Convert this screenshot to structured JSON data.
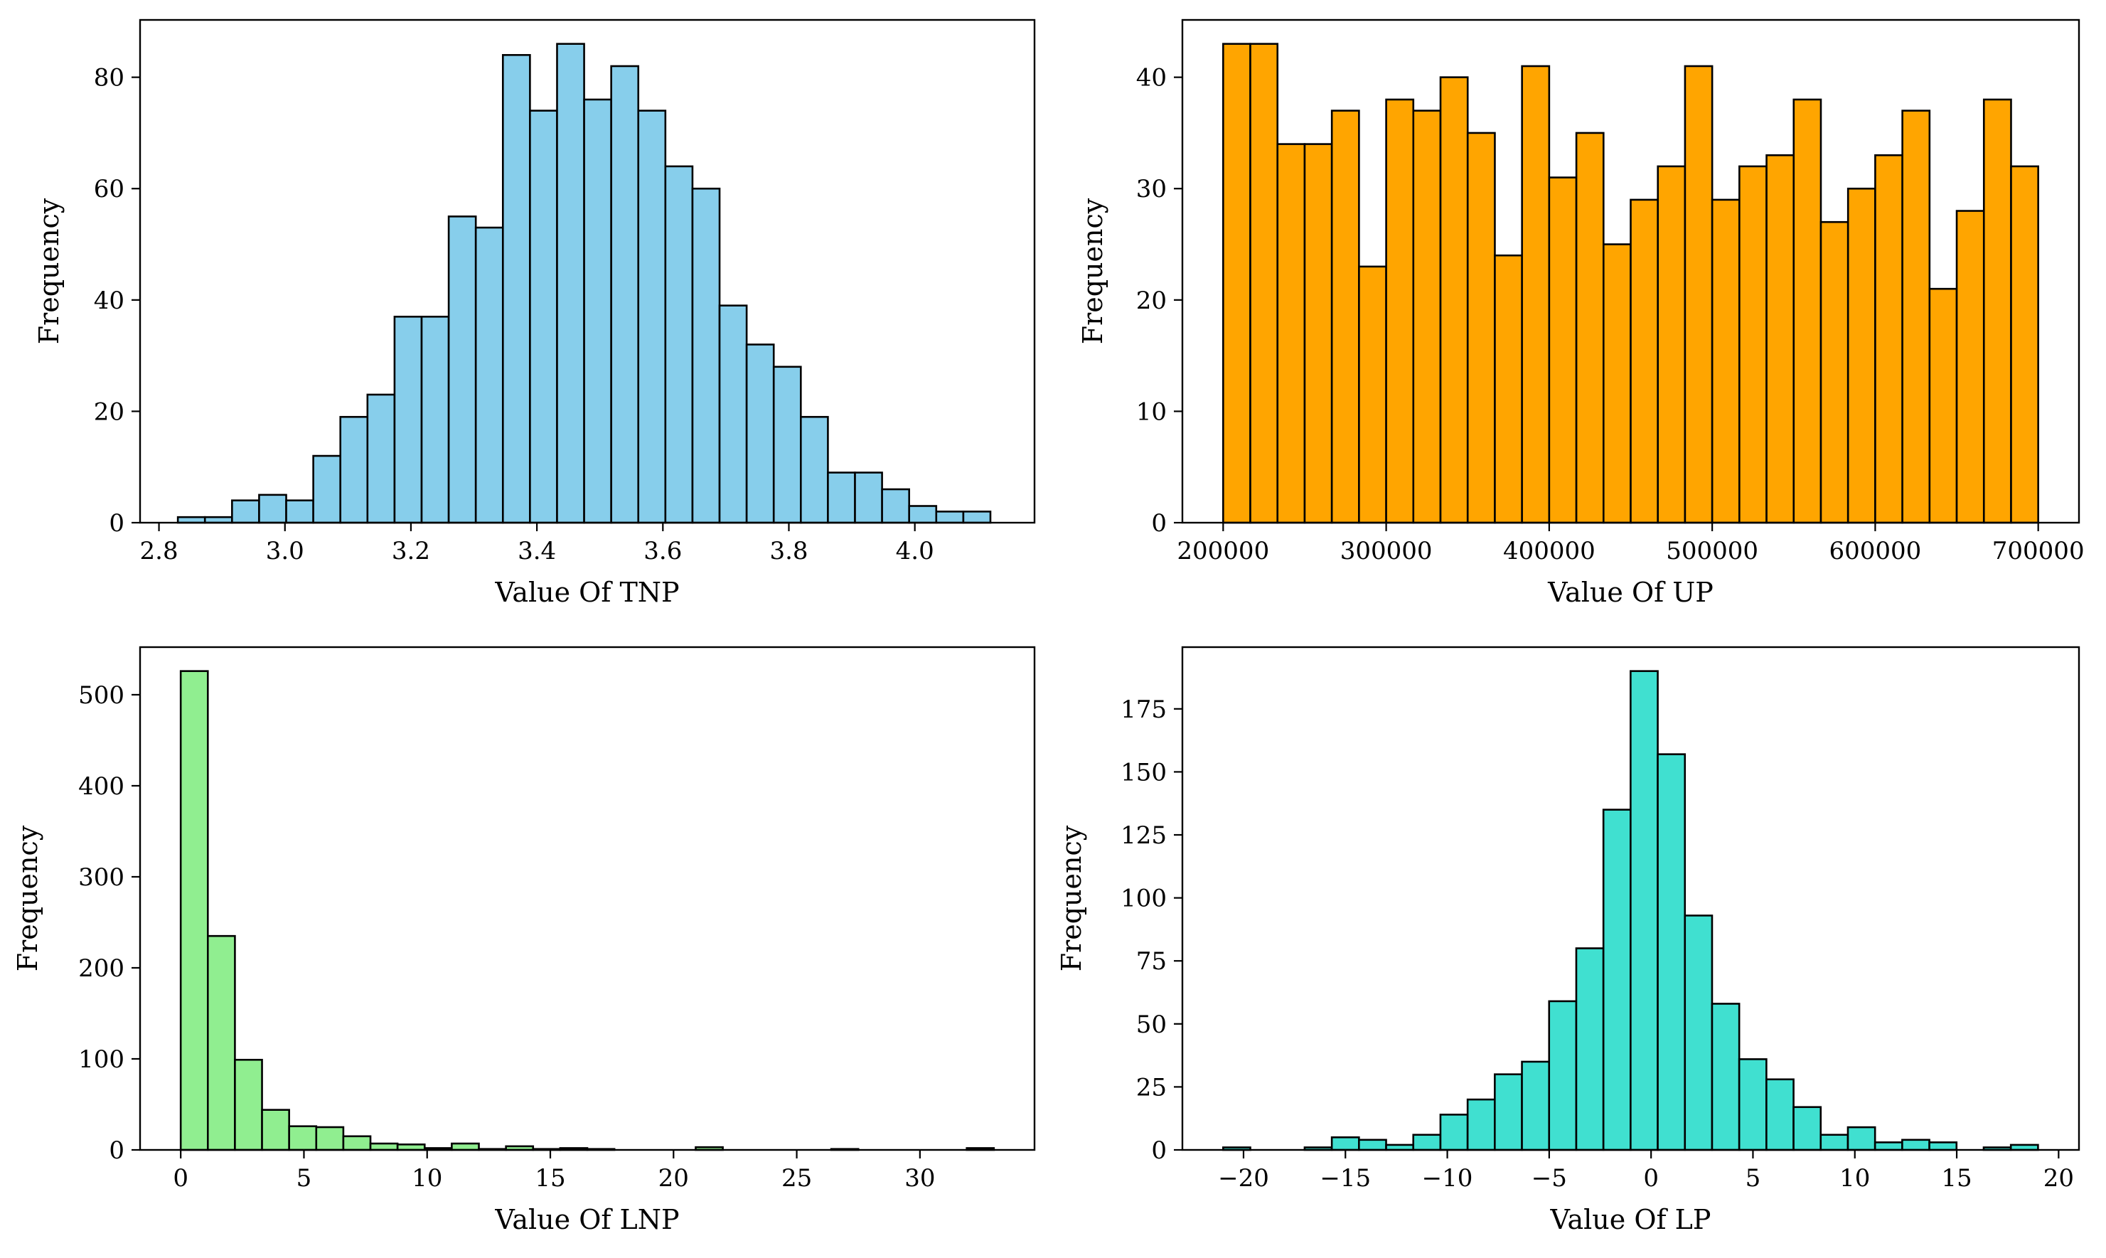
{
  "chart_data": [
    {
      "type": "bar",
      "subtype": "histogram",
      "xlabel": "Value Of TNP",
      "ylabel": "Frequency",
      "color": "#87CEEB",
      "edge_color": "#000000",
      "bin_start": 2.83,
      "bin_width": 0.043,
      "values": [
        1,
        1,
        4,
        5,
        4,
        12,
        19,
        23,
        37,
        37,
        55,
        53,
        84,
        74,
        86,
        76,
        82,
        74,
        64,
        60,
        39,
        32,
        28,
        19,
        9,
        9,
        6,
        3,
        2,
        2
      ],
      "xlim": [
        2.77,
        4.19
      ],
      "ylim": [
        0,
        90.3
      ],
      "xticks": [
        2.8,
        3.0,
        3.2,
        3.4,
        3.6,
        3.8,
        4.0
      ],
      "xtick_labels": [
        "2.8",
        "3.0",
        "3.2",
        "3.4",
        "3.6",
        "3.8",
        "4.0"
      ],
      "yticks": [
        0,
        20,
        40,
        60,
        80
      ],
      "ytick_labels": [
        "0",
        "20",
        "40",
        "60",
        "80"
      ]
    },
    {
      "type": "bar",
      "subtype": "histogram",
      "xlabel": "Value Of UP",
      "ylabel": "Frequency",
      "color": "#FFA500",
      "edge_color": "#000000",
      "bin_start": 200000,
      "bin_width": 16666.67,
      "values": [
        43,
        43,
        34,
        34,
        37,
        23,
        38,
        37,
        40,
        35,
        24,
        41,
        31,
        35,
        25,
        29,
        32,
        41,
        29,
        32,
        33,
        38,
        27,
        30,
        33,
        37,
        21,
        28,
        38,
        32
      ],
      "xlim": [
        175000,
        725000
      ],
      "ylim": [
        0,
        45.15
      ],
      "xticks": [
        200000,
        300000,
        400000,
        500000,
        600000,
        700000
      ],
      "xtick_labels": [
        "200000",
        "300000",
        "400000",
        "500000",
        "600000",
        "700000"
      ],
      "yticks": [
        0,
        10,
        20,
        30,
        40
      ],
      "ytick_labels": [
        "0",
        "10",
        "20",
        "30",
        "40"
      ]
    },
    {
      "type": "bar",
      "subtype": "histogram",
      "xlabel": "Value Of LNP",
      "ylabel": "Frequency",
      "color": "#90EE90",
      "edge_color": "#000000",
      "bin_start": 0,
      "bin_width": 1.1,
      "values": [
        526,
        235,
        99,
        44,
        26,
        25,
        15,
        7,
        6,
        2,
        7,
        1,
        4,
        1,
        2,
        1,
        0,
        0,
        0,
        3,
        0,
        0,
        0,
        0,
        1,
        0,
        0,
        0,
        0,
        2
      ],
      "xlim": [
        -1.65,
        34.65
      ],
      "ylim": [
        0,
        552.3
      ],
      "xticks": [
        0,
        5,
        10,
        15,
        20,
        25,
        30
      ],
      "xtick_labels": [
        "0",
        "5",
        "10",
        "15",
        "20",
        "25",
        "30"
      ],
      "yticks": [
        0,
        100,
        200,
        300,
        400,
        500
      ],
      "ytick_labels": [
        "0",
        "100",
        "200",
        "300",
        "400",
        "500"
      ]
    },
    {
      "type": "bar",
      "subtype": "histogram",
      "xlabel": "Value Of LP",
      "ylabel": "Frequency",
      "color": "#40E0D0",
      "edge_color": "#000000",
      "bin_start": -21,
      "bin_width": 1.333,
      "values": [
        1,
        0,
        0,
        1,
        5,
        4,
        2,
        6,
        14,
        20,
        30,
        35,
        59,
        80,
        135,
        190,
        157,
        93,
        58,
        36,
        28,
        17,
        6,
        9,
        3,
        4,
        3,
        0,
        1,
        2
      ],
      "xlim": [
        -23,
        21
      ],
      "ylim": [
        0,
        199.5
      ],
      "xticks": [
        -20,
        -15,
        -10,
        -5,
        0,
        5,
        10,
        15,
        20
      ],
      "xtick_labels": [
        "−20",
        "−15",
        "−10",
        "−5",
        "0",
        "5",
        "10",
        "15",
        "20"
      ],
      "yticks": [
        0,
        25,
        50,
        75,
        100,
        125,
        150,
        175
      ],
      "ytick_labels": [
        "0",
        "25",
        "50",
        "75",
        "100",
        "125",
        "150",
        "175"
      ]
    }
  ]
}
